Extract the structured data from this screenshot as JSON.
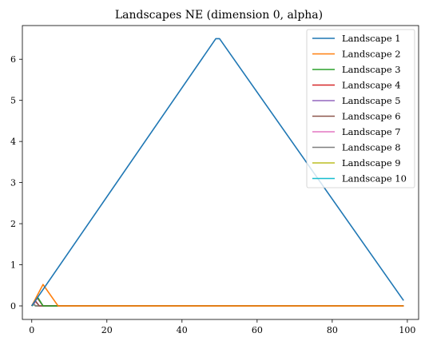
{
  "chart_data": {
    "type": "line",
    "title": "Landscapes NE (dimension 0, alpha)",
    "xlabel": "",
    "ylabel": "",
    "xlim": [
      -2.5,
      103
    ],
    "ylim": [
      -0.33,
      6.82
    ],
    "xticks": [
      0,
      20,
      40,
      60,
      80,
      100
    ],
    "yticks": [
      0,
      1,
      2,
      3,
      4,
      5,
      6
    ],
    "grid": false,
    "legend_position": "top-right",
    "series": [
      {
        "name": "Landscape 1",
        "color": "#1f77b4",
        "x": [
          0,
          49,
          50,
          99
        ],
        "y": [
          0,
          6.5,
          6.5,
          0.13
        ]
      },
      {
        "name": "Landscape 2",
        "color": "#ff7f0e",
        "x": [
          0,
          3,
          7,
          99
        ],
        "y": [
          0,
          0.52,
          0,
          0
        ]
      },
      {
        "name": "Landscape 3",
        "color": "#2ca02c",
        "x": [
          0,
          1.5,
          3,
          99
        ],
        "y": [
          0,
          0.22,
          0,
          0
        ]
      },
      {
        "name": "Landscape 4",
        "color": "#d62728",
        "x": [
          0,
          1.5,
          3,
          99
        ],
        "y": [
          0,
          0.2,
          0,
          0
        ]
      },
      {
        "name": "Landscape 5",
        "color": "#9467bd",
        "x": [
          0,
          1.5,
          3,
          99
        ],
        "y": [
          0,
          0.19,
          0,
          0
        ]
      },
      {
        "name": "Landscape 6",
        "color": "#8c564b",
        "x": [
          0,
          1,
          2,
          99
        ],
        "y": [
          0,
          0.12,
          0,
          0
        ]
      },
      {
        "name": "Landscape 7",
        "color": "#e377c2",
        "x": [
          0,
          1,
          2,
          99
        ],
        "y": [
          0,
          0.1,
          0,
          0
        ]
      },
      {
        "name": "Landscape 8",
        "color": "#7f7f7f",
        "x": [
          0,
          0.5,
          1,
          99
        ],
        "y": [
          0,
          0.06,
          0,
          0
        ]
      },
      {
        "name": "Landscape 9",
        "color": "#bcbd22",
        "x": [
          0,
          0.5,
          1,
          99
        ],
        "y": [
          0,
          0.04,
          0,
          0
        ]
      },
      {
        "name": "Landscape 10",
        "color": "#17becf",
        "x": [
          0,
          0.5,
          1,
          99
        ],
        "y": [
          0,
          0.03,
          0,
          0
        ]
      }
    ]
  }
}
